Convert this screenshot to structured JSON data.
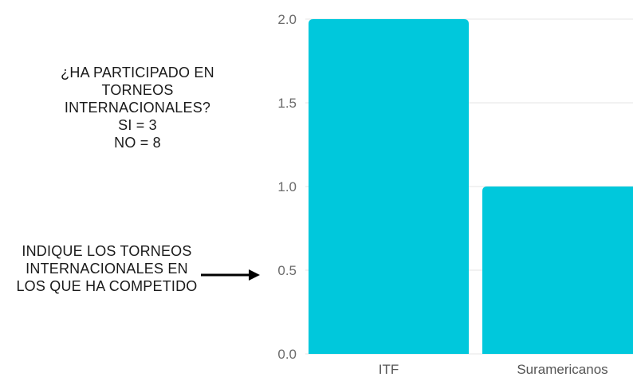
{
  "question": {
    "lines": [
      "¿HA PARTICIPADO EN",
      "TORNEOS",
      "INTERNACIONALES?",
      "SI = 3",
      "NO = 8"
    ]
  },
  "instruction": {
    "lines": [
      "INDIQUE LOS TORNEOS",
      "INTERNACIONALES EN",
      "LOS QUE HA COMPETIDO"
    ]
  },
  "chart_data": {
    "type": "bar",
    "categories": [
      "ITF",
      "Suramericanos"
    ],
    "values": [
      2,
      1
    ],
    "title": "",
    "xlabel": "",
    "ylabel": "",
    "ylim": [
      0,
      2
    ],
    "yticks": [
      "0.0",
      "0.5",
      "1.0",
      "1.5",
      "2.0"
    ],
    "grid": true,
    "bar_color": "#00c8dc",
    "grid_color": "#e6e6e6"
  }
}
